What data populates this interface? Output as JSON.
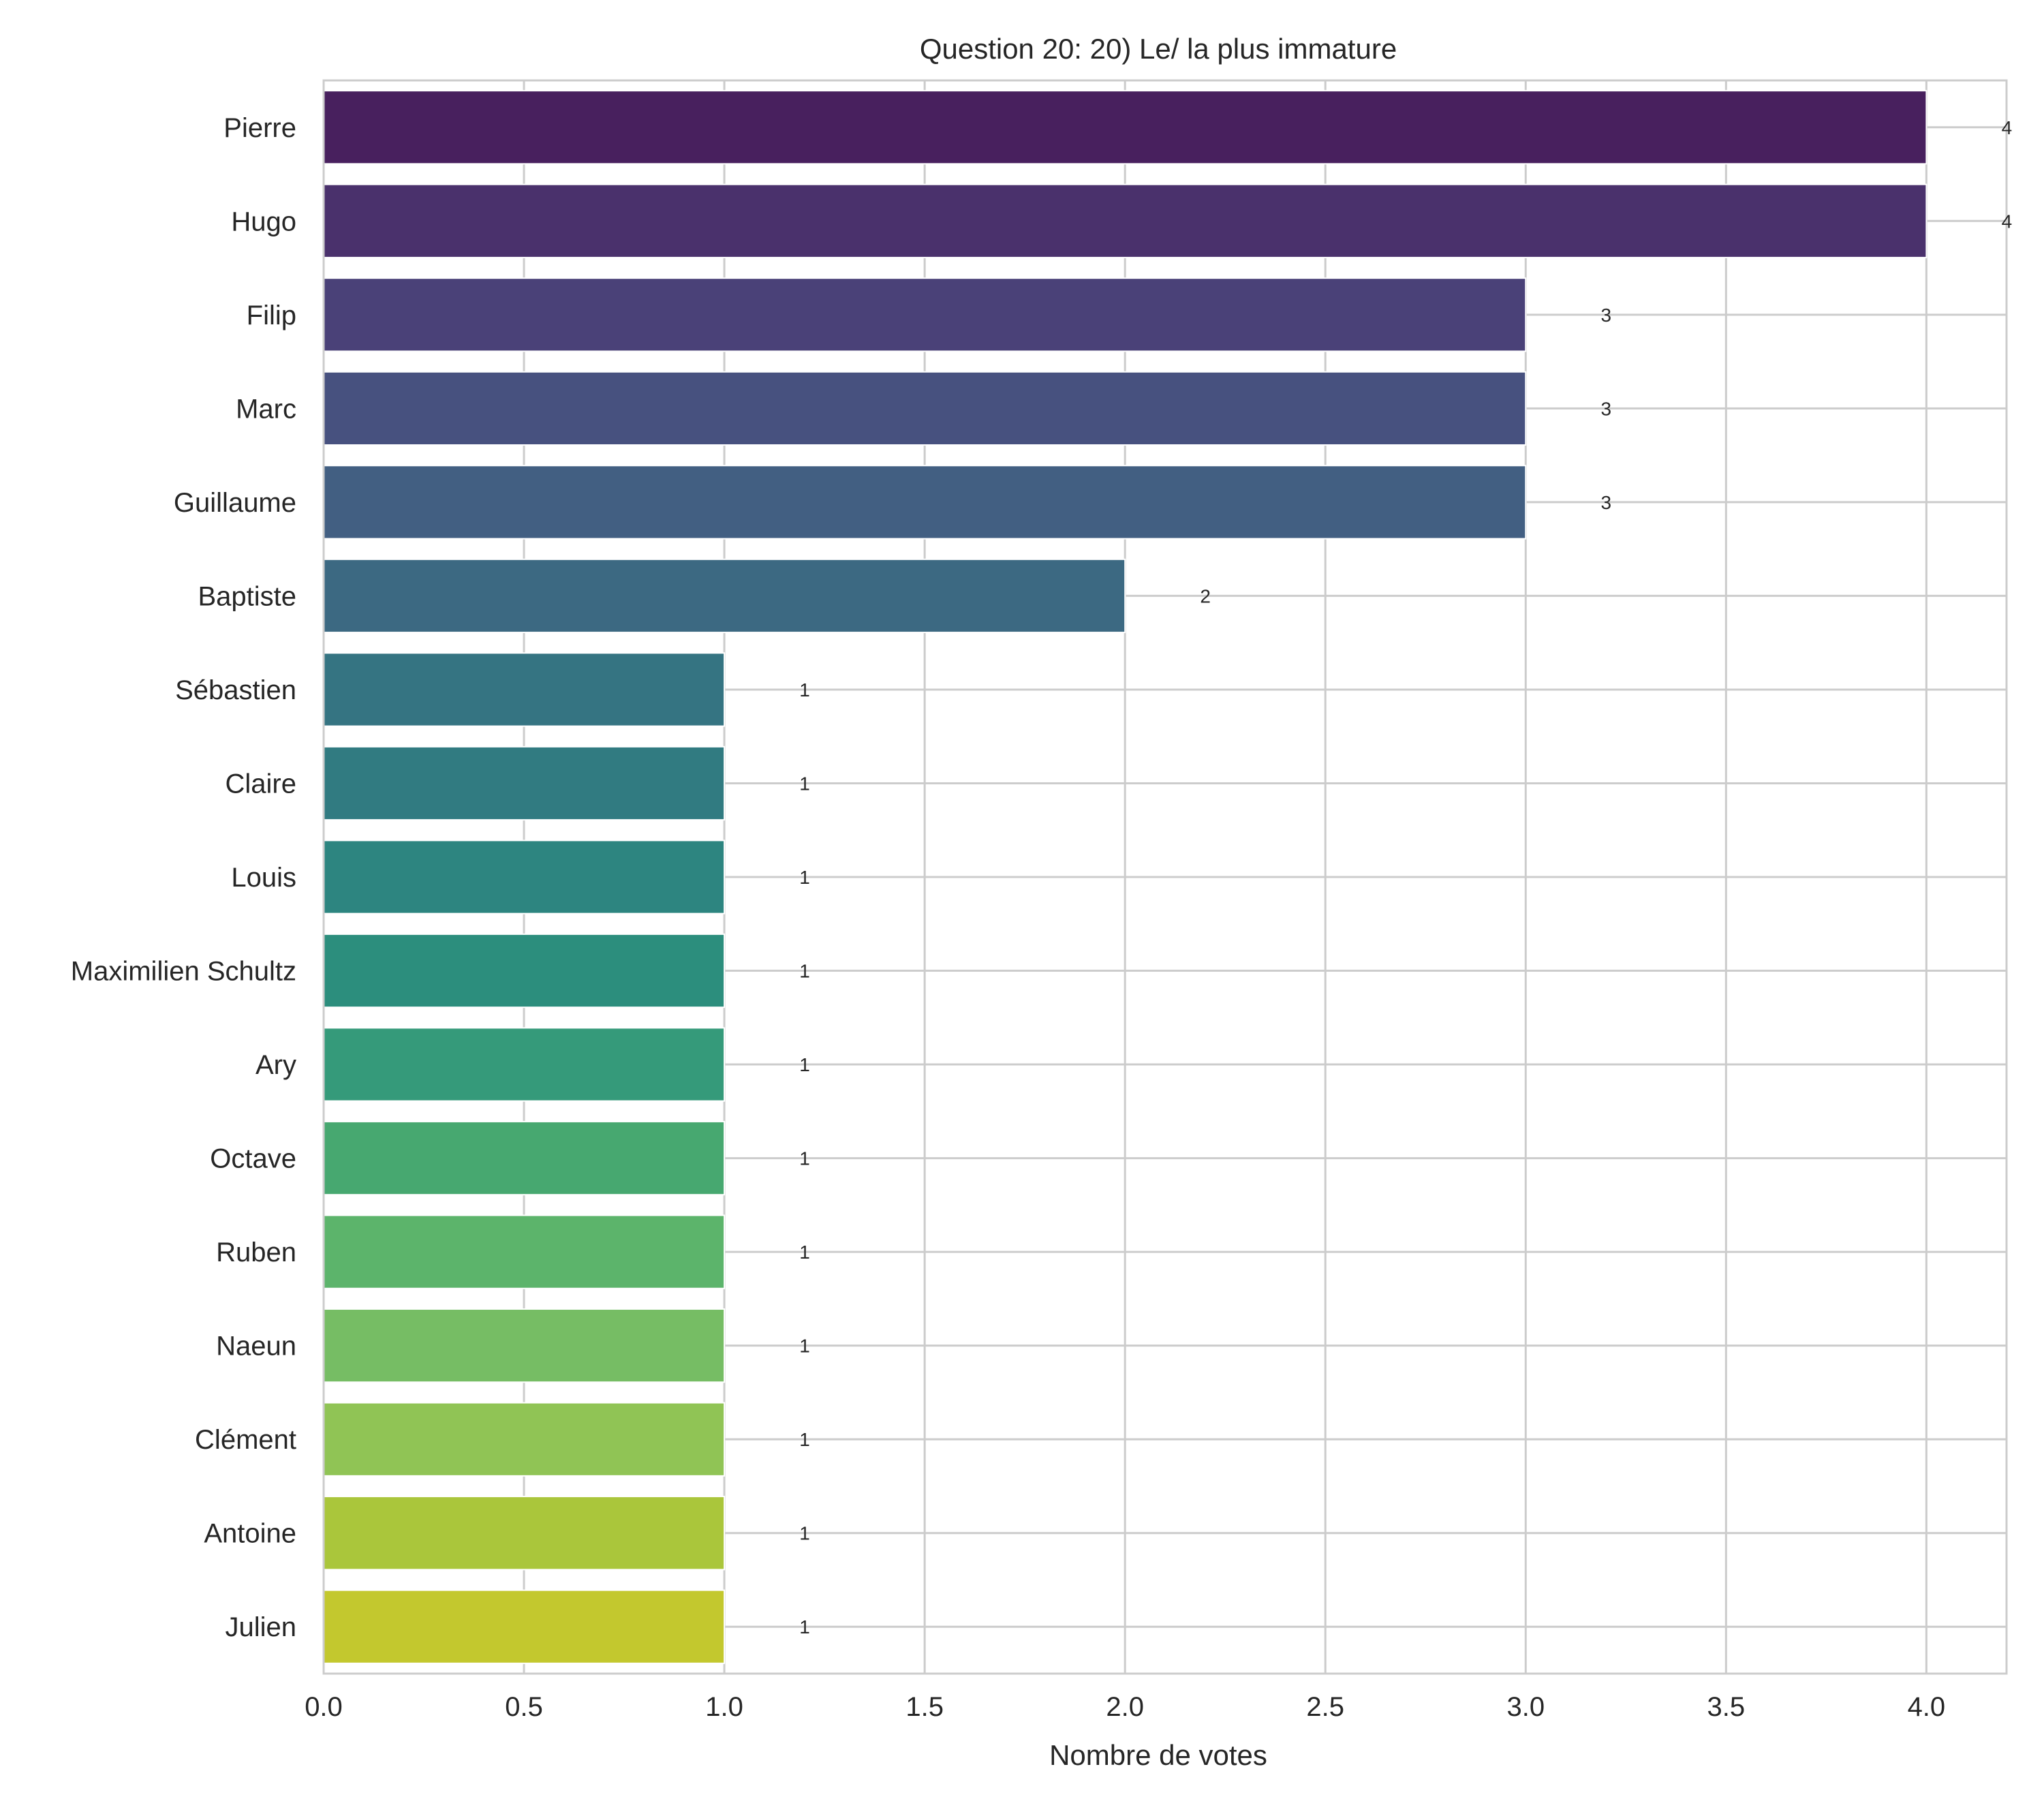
{
  "chart_data": {
    "type": "bar",
    "orientation": "horizontal",
    "title": "Question 20: 20) Le/ la plus immature",
    "xlabel": "Nombre de votes",
    "ylabel": "",
    "xlim": [
      0,
      4.2
    ],
    "xticks": [
      0.0,
      0.5,
      1.0,
      1.5,
      2.0,
      2.5,
      3.0,
      3.5,
      4.0
    ],
    "xtick_labels": [
      "0.0",
      "0.5",
      "1.0",
      "1.5",
      "2.0",
      "2.5",
      "3.0",
      "3.5",
      "4.0"
    ],
    "grid": true,
    "categories": [
      "Pierre",
      "Hugo",
      "Filip",
      "Marc",
      "Guillaume",
      "Baptiste",
      "Sébastien",
      "Claire",
      "Louis",
      "Maximilien Schultz",
      "Ary",
      "Octave",
      "Ruben",
      "Naeun",
      "Clément",
      "Antoine",
      "Julien"
    ],
    "values": [
      4,
      4,
      3,
      3,
      3,
      2,
      1,
      1,
      1,
      1,
      1,
      1,
      1,
      1,
      1,
      1,
      1
    ],
    "value_labels": [
      "4",
      "4",
      "3",
      "3",
      "3",
      "2",
      "1",
      "1",
      "1",
      "1",
      "1",
      "1",
      "1",
      "1",
      "1",
      "1",
      "1"
    ],
    "colors": [
      "#48205e",
      "#4a316c",
      "#4a4178",
      "#47517f",
      "#425f82",
      "#3c6982",
      "#357482",
      "#317b81",
      "#2d8580",
      "#2c8e7d",
      "#359a7a",
      "#47a870",
      "#5cb46b",
      "#76bd64",
      "#90c455",
      "#aac63b",
      "#c3c82e"
    ]
  }
}
